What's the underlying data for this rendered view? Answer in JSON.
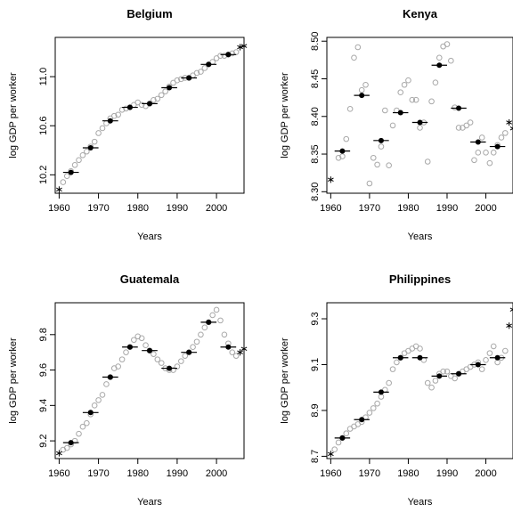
{
  "chart_data": [
    {
      "type": "scatter",
      "title": "Belgium",
      "xlabel": "Years",
      "ylabel": "log GDP per worker",
      "xlim": [
        1959,
        2007
      ],
      "ylim": [
        10.05,
        11.32
      ],
      "xticks": [
        1960,
        1970,
        1980,
        1990,
        2000
      ],
      "yticks": [
        10.2,
        10.6,
        11.0
      ],
      "ytick_labels": [
        "10.2",
        "10.6",
        "11.0"
      ],
      "annual_values": {
        "x": [
          1961,
          1962,
          1963,
          1964,
          1965,
          1966,
          1967,
          1968,
          1969,
          1970,
          1971,
          1972,
          1973,
          1974,
          1975,
          1976,
          1977,
          1978,
          1979,
          1980,
          1981,
          1982,
          1983,
          1984,
          1985,
          1986,
          1987,
          1988,
          1989,
          1990,
          1991,
          1992,
          1993,
          1994,
          1995,
          1996,
          1997,
          1998,
          1999,
          2000,
          2001,
          2002,
          2003,
          2004,
          2005
        ],
        "y": [
          10.14,
          10.19,
          10.23,
          10.28,
          10.32,
          10.36,
          10.39,
          10.43,
          10.47,
          10.54,
          10.58,
          10.62,
          10.66,
          10.68,
          10.69,
          10.73,
          10.74,
          10.75,
          10.77,
          10.79,
          10.77,
          10.76,
          10.78,
          10.81,
          10.82,
          10.85,
          10.88,
          10.92,
          10.95,
          10.97,
          10.98,
          10.99,
          10.99,
          11.01,
          11.03,
          11.04,
          11.07,
          11.1,
          11.12,
          11.15,
          11.17,
          11.17,
          11.18,
          11.19,
          11.2
        ]
      },
      "endpoint_markers": [
        [
          1960,
          10.08
        ],
        [
          2006,
          11.24
        ],
        [
          2007,
          11.25
        ]
      ],
      "five_year_means": [
        [
          1963,
          10.22
        ],
        [
          1968,
          10.42
        ],
        [
          1973,
          10.64
        ],
        [
          1978,
          10.75
        ],
        [
          1983,
          10.78
        ],
        [
          1988,
          10.91
        ],
        [
          1993,
          10.99
        ],
        [
          1998,
          11.1
        ],
        [
          2003,
          11.18
        ]
      ]
    },
    {
      "type": "scatter",
      "title": "Kenya",
      "xlabel": "Years",
      "ylabel": "log GDP per worker",
      "xlim": [
        1959,
        2007
      ],
      "ylim": [
        8.298,
        8.505
      ],
      "xticks": [
        1960,
        1970,
        1980,
        1990,
        2000
      ],
      "yticks": [
        8.3,
        8.35,
        8.4,
        8.45,
        8.5
      ],
      "ytick_labels": [
        "8.30",
        "8.35",
        "8.40",
        "8.45",
        "8.50"
      ],
      "annual_values": {
        "x": [
          1962,
          1963,
          1964,
          1965,
          1966,
          1967,
          1968,
          1969,
          1970,
          1971,
          1972,
          1973,
          1974,
          1975,
          1976,
          1977,
          1978,
          1979,
          1980,
          1981,
          1982,
          1983,
          1984,
          1985,
          1986,
          1987,
          1988,
          1989,
          1990,
          1991,
          1992,
          1993,
          1994,
          1995,
          1996,
          1997,
          1998,
          1999,
          2000,
          2001,
          2002,
          2003,
          2004,
          2005
        ],
        "y": [
          8.345,
          8.347,
          8.37,
          8.41,
          8.478,
          8.492,
          8.435,
          8.442,
          8.311,
          8.345,
          8.336,
          8.36,
          8.408,
          8.335,
          8.388,
          8.408,
          8.432,
          8.442,
          8.448,
          8.422,
          8.422,
          8.385,
          8.392,
          8.34,
          8.42,
          8.445,
          8.478,
          8.493,
          8.496,
          8.474,
          8.412,
          8.385,
          8.385,
          8.388,
          8.392,
          8.342,
          8.352,
          8.372,
          8.352,
          8.338,
          8.352,
          8.362,
          8.372,
          8.378
        ]
      },
      "endpoint_markers": [
        [
          1960,
          8.316
        ],
        [
          2006,
          8.392
        ],
        [
          2007,
          8.384
        ]
      ],
      "five_year_means": [
        [
          1963,
          8.354
        ],
        [
          1968,
          8.428
        ],
        [
          1973,
          8.368
        ],
        [
          1978,
          8.405
        ],
        [
          1983,
          8.392
        ],
        [
          1988,
          8.468
        ],
        [
          1993,
          8.411
        ],
        [
          1998,
          8.366
        ],
        [
          2003,
          8.36
        ]
      ]
    },
    {
      "type": "scatter",
      "title": "Guatemala",
      "xlabel": "Years",
      "ylabel": "log GDP per worker",
      "xlim": [
        1959,
        2007
      ],
      "ylim": [
        9.1,
        9.98
      ],
      "xticks": [
        1960,
        1970,
        1980,
        1990,
        2000
      ],
      "yticks": [
        9.2,
        9.4,
        9.6,
        9.8
      ],
      "ytick_labels": [
        "9.2",
        "9.4",
        "9.6",
        "9.8"
      ],
      "annual_values": {
        "x": [
          1961,
          1962,
          1963,
          1964,
          1965,
          1966,
          1967,
          1968,
          1969,
          1970,
          1971,
          1972,
          1973,
          1974,
          1975,
          1976,
          1977,
          1978,
          1979,
          1980,
          1981,
          1982,
          1983,
          1984,
          1985,
          1986,
          1987,
          1988,
          1989,
          1990,
          1991,
          1992,
          1993,
          1994,
          1995,
          1996,
          1997,
          1998,
          1999,
          2000,
          2001,
          2002,
          2003,
          2004,
          2005
        ],
        "y": [
          9.15,
          9.16,
          9.18,
          9.2,
          9.24,
          9.28,
          9.3,
          9.35,
          9.4,
          9.43,
          9.46,
          9.52,
          9.56,
          9.61,
          9.62,
          9.66,
          9.7,
          9.73,
          9.77,
          9.79,
          9.78,
          9.74,
          9.71,
          9.69,
          9.66,
          9.64,
          9.61,
          9.6,
          9.6,
          9.62,
          9.65,
          9.68,
          9.7,
          9.73,
          9.76,
          9.8,
          9.84,
          9.87,
          9.91,
          9.94,
          9.88,
          9.8,
          9.75,
          9.7,
          9.68
        ]
      },
      "endpoint_markers": [
        [
          1960,
          9.13
        ],
        [
          2006,
          9.7
        ],
        [
          2007,
          9.72
        ]
      ],
      "five_year_means": [
        [
          1963,
          9.19
        ],
        [
          1968,
          9.36
        ],
        [
          1973,
          9.56
        ],
        [
          1978,
          9.73
        ],
        [
          1983,
          9.71
        ],
        [
          1988,
          9.61
        ],
        [
          1993,
          9.7
        ],
        [
          1998,
          9.87
        ],
        [
          2003,
          9.73
        ]
      ]
    },
    {
      "type": "scatter",
      "title": "Philippines",
      "xlabel": "Years",
      "ylabel": "log GDP per worker",
      "xlim": [
        1959,
        2007
      ],
      "ylim": [
        8.69,
        9.37
      ],
      "xticks": [
        1960,
        1970,
        1980,
        1990,
        2000
      ],
      "yticks": [
        8.7,
        8.9,
        9.1,
        9.3
      ],
      "ytick_labels": [
        "8.7",
        "8.9",
        "9.1",
        "9.3"
      ],
      "annual_values": {
        "x": [
          1961,
          1962,
          1963,
          1964,
          1965,
          1966,
          1967,
          1968,
          1969,
          1970,
          1971,
          1972,
          1973,
          1974,
          1975,
          1976,
          1977,
          1978,
          1979,
          1980,
          1981,
          1982,
          1983,
          1984,
          1985,
          1986,
          1987,
          1988,
          1989,
          1990,
          1991,
          1992,
          1993,
          1994,
          1995,
          1996,
          1997,
          1998,
          1999,
          2000,
          2001,
          2002,
          2003,
          2004,
          2005
        ],
        "y": [
          8.73,
          8.76,
          8.78,
          8.8,
          8.82,
          8.83,
          8.84,
          8.85,
          8.87,
          8.89,
          8.91,
          8.93,
          8.96,
          8.99,
          9.02,
          9.08,
          9.11,
          9.13,
          9.15,
          9.16,
          9.17,
          9.18,
          9.17,
          9.12,
          9.02,
          9.0,
          9.03,
          9.06,
          9.07,
          9.07,
          9.05,
          9.04,
          9.06,
          9.07,
          9.08,
          9.09,
          9.1,
          9.11,
          9.08,
          9.12,
          9.15,
          9.18,
          9.11,
          9.13,
          9.16
        ]
      },
      "endpoint_markers": [
        [
          1960,
          8.71
        ],
        [
          2006,
          9.27
        ],
        [
          2007,
          9.34
        ]
      ],
      "five_year_means": [
        [
          1963,
          8.78
        ],
        [
          1968,
          8.86
        ],
        [
          1973,
          8.98
        ],
        [
          1978,
          9.13
        ],
        [
          1983,
          9.13
        ],
        [
          1988,
          9.05
        ],
        [
          1993,
          9.06
        ],
        [
          1998,
          9.1
        ],
        [
          2003,
          9.13
        ]
      ]
    }
  ]
}
